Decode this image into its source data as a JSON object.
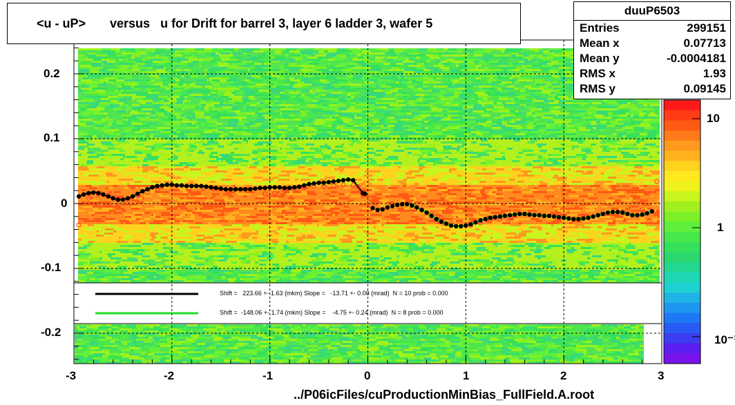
{
  "title": "<u - uP>       versus   u for Drift for barrel 3, layer 6 ladder 3, wafer 5",
  "stats": {
    "name": "duuP6503",
    "rows": [
      {
        "label": "Entries",
        "value": "299151"
      },
      {
        "label": "Mean x",
        "value": "0.07713"
      },
      {
        "label": "Mean y",
        "value": "-0.0004181"
      },
      {
        "label": "RMS x",
        "value": "1.93"
      },
      {
        "label": "RMS y",
        "value": "0.09145"
      }
    ]
  },
  "xtitle": "../P06icFiles/cuProductionMinBias_FullField.A.root",
  "legend": {
    "line1": "Shift =   223.66 +- 1.63 (mkm) Slope =   -13.71 +- 0.00 (mrad)  N = 10 prob = 0.000",
    "line2": "Shift =  -148.06 +- 1.74 (mkm) Slope =    -4.75 +- 0.24 (mrad)  N = 8 prob = 0.000"
  },
  "colorbar_labels": [
    "10",
    "1",
    "10⁻¹"
  ],
  "colors": {
    "fit_black": "#000000",
    "fit_green": "#22dd22",
    "open_markers": "#ff3333"
  },
  "chart_data": {
    "type": "scatter",
    "xlim": [
      -3,
      3
    ],
    "ylim": [
      -0.25,
      0.25
    ],
    "xticks": [
      "-3",
      "-2",
      "-1",
      "0",
      "1",
      "2",
      "3"
    ],
    "yticks": [
      "0.2",
      "0.1",
      "0",
      "-0.1",
      "-0.2"
    ],
    "colorbar": "log",
    "grid": true,
    "series": [
      {
        "marker": "filled-circle",
        "x": [
          -2.95,
          -2.9,
          -2.85,
          -2.8,
          -2.75,
          -2.7,
          -2.65,
          -2.6,
          -2.55,
          -2.5,
          -2.45,
          -2.4,
          -2.35,
          -2.3,
          -2.25,
          -2.2,
          -2.15,
          -2.1,
          -2.05,
          -2.0,
          -1.95,
          -1.9,
          -1.85,
          -1.8,
          -1.75,
          -1.7,
          -1.65,
          -1.6,
          -1.55,
          -1.5,
          -1.45,
          -1.4,
          -1.35,
          -1.3,
          -1.25,
          -1.2,
          -1.15,
          -1.1,
          -1.05,
          -1.0,
          -0.95,
          -0.9,
          -0.85,
          -0.8,
          -0.75,
          -0.7,
          -0.65,
          -0.6,
          -0.55,
          -0.5,
          -0.45,
          -0.4,
          -0.35,
          -0.3,
          -0.25,
          -0.2,
          -0.15,
          -0.05,
          -0.03,
          0.05,
          0.1,
          0.15,
          0.2,
          0.25,
          0.3,
          0.35,
          0.4,
          0.45,
          0.5,
          0.55,
          0.6,
          0.65,
          0.7,
          0.75,
          0.8,
          0.85,
          0.9,
          0.95,
          1.0,
          1.05,
          1.1,
          1.15,
          1.2,
          1.25,
          1.3,
          1.35,
          1.4,
          1.45,
          1.5,
          1.55,
          1.6,
          1.65,
          1.7,
          1.75,
          1.8,
          1.85,
          1.9,
          1.95,
          2.0,
          2.05,
          2.1,
          2.15,
          2.2,
          2.25,
          2.3,
          2.35,
          2.4,
          2.45,
          2.5,
          2.55,
          2.6,
          2.65,
          2.7,
          2.75,
          2.8,
          2.85,
          2.9
        ],
        "y": [
          0.011,
          0.014,
          0.016,
          0.017,
          0.016,
          0.014,
          0.011,
          0.008,
          0.006,
          0.006,
          0.008,
          0.011,
          0.015,
          0.019,
          0.022,
          0.025,
          0.027,
          0.028,
          0.029,
          0.029,
          0.028,
          0.028,
          0.027,
          0.027,
          0.027,
          0.027,
          0.026,
          0.025,
          0.024,
          0.023,
          0.022,
          0.022,
          0.022,
          0.022,
          0.022,
          0.022,
          0.023,
          0.024,
          0.024,
          0.025,
          0.025,
          0.025,
          0.024,
          0.024,
          0.025,
          0.026,
          0.028,
          0.03,
          0.031,
          0.032,
          0.032,
          0.033,
          0.034,
          0.035,
          0.036,
          0.037,
          0.036,
          0.016,
          0.015,
          -0.007,
          -0.01,
          -0.009,
          -0.006,
          -0.004,
          -0.002,
          -0.001,
          -0.001,
          -0.003,
          -0.006,
          -0.01,
          -0.014,
          -0.019,
          -0.024,
          -0.028,
          -0.031,
          -0.034,
          -0.035,
          -0.035,
          -0.034,
          -0.032,
          -0.029,
          -0.026,
          -0.024,
          -0.022,
          -0.021,
          -0.02,
          -0.019,
          -0.018,
          -0.017,
          -0.016,
          -0.016,
          -0.017,
          -0.018,
          -0.018,
          -0.019,
          -0.019,
          -0.02,
          -0.021,
          -0.022,
          -0.023,
          -0.024,
          -0.024,
          -0.023,
          -0.022,
          -0.02,
          -0.018,
          -0.016,
          -0.014,
          -0.013,
          -0.013,
          -0.014,
          -0.016,
          -0.018,
          -0.018,
          -0.017,
          -0.015,
          -0.012
        ]
      },
      {
        "marker": "open-circle",
        "x": [
          -2.95,
          -2.85,
          -2.75,
          -2.65,
          -2.55,
          -2.45,
          -2.35,
          -2.25,
          -2.15,
          -1.05,
          -0.95,
          -0.85,
          -0.75,
          -0.65,
          -0.55,
          -0.45,
          -0.35,
          -0.25,
          -0.15,
          -0.1,
          0.45,
          0.55,
          0.65,
          0.75,
          0.85,
          1.05,
          1.15,
          1.25,
          1.35,
          1.45,
          2.2,
          2.4,
          2.6,
          2.8,
          2.95
        ],
        "y": [
          -0.033,
          0.008,
          0.014,
          0.013,
          0.006,
          0.005,
          0.012,
          0.018,
          0.022,
          0.015,
          0.016,
          0.02,
          0.022,
          0.025,
          0.027,
          0.026,
          0.028,
          0.029,
          0.028,
          0.026,
          -0.007,
          -0.01,
          -0.015,
          -0.022,
          -0.03,
          -0.034,
          -0.03,
          -0.026,
          -0.024,
          -0.022,
          -0.02,
          -0.013,
          -0.012,
          -0.01,
          0.034
        ]
      }
    ]
  }
}
